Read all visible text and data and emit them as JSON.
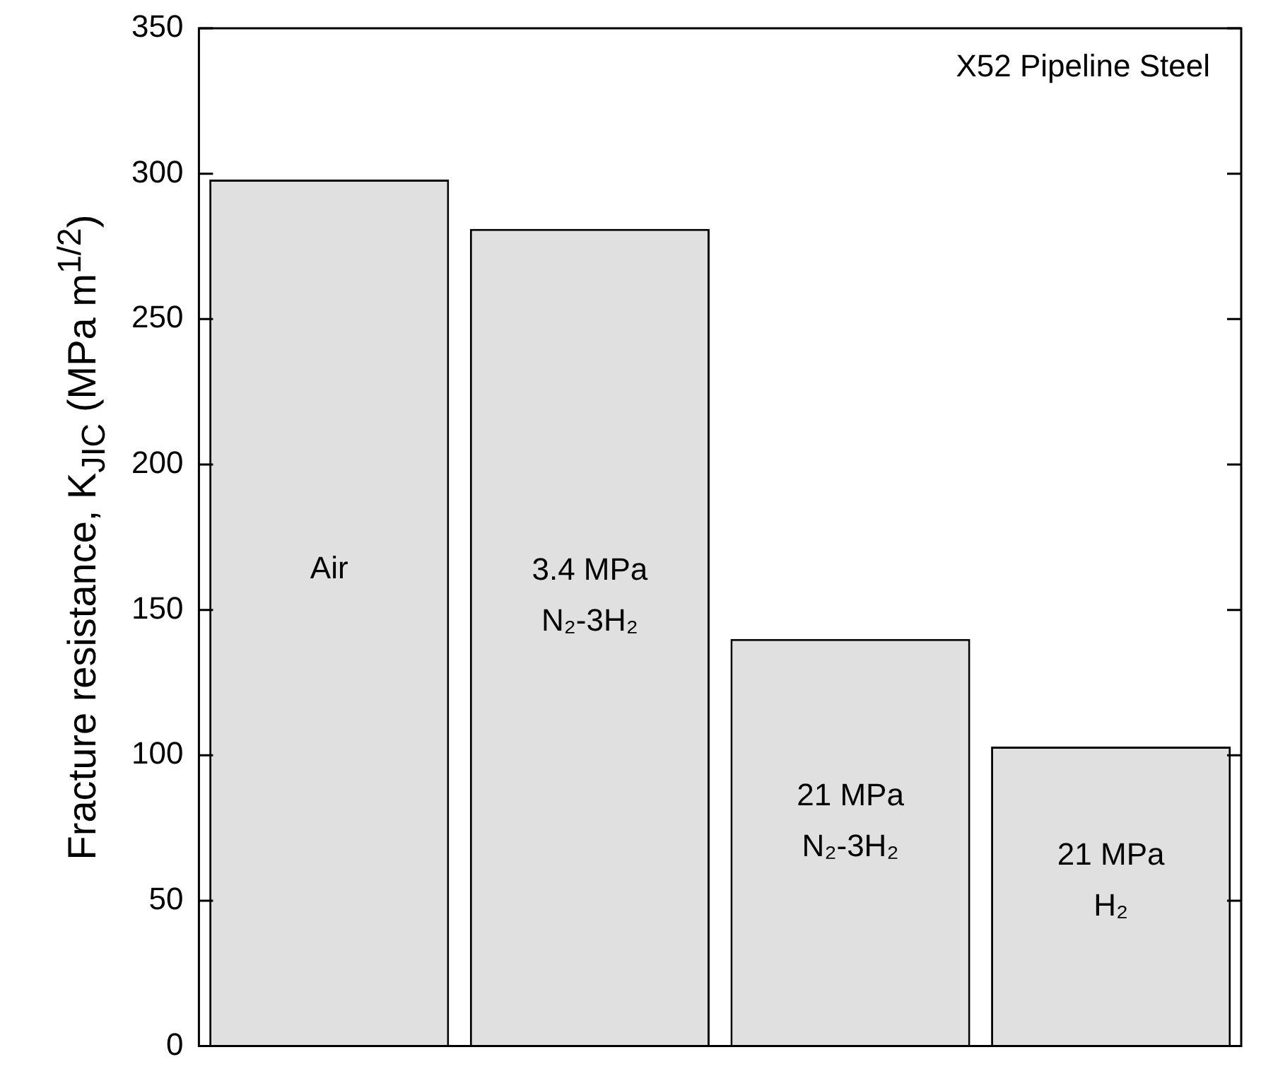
{
  "chart_data": {
    "type": "bar",
    "ylabel": "Fracture resistance, K$_{JIC}$ (MPa m$^{1/2}$)",
    "categories": [
      "Air",
      "3.4 MPa N₂-3H₂",
      "21 MPa N₂-3H₂",
      "21 MPa H₂"
    ],
    "values": [
      298,
      281,
      140,
      103
    ],
    "color": "#e0e0e0",
    "ylim": [
      0,
      350
    ],
    "yticks": [
      0,
      50,
      100,
      150,
      200,
      250,
      300,
      350
    ],
    "annotations": [
      "X52 Pipeline Steel"
    ]
  }
}
